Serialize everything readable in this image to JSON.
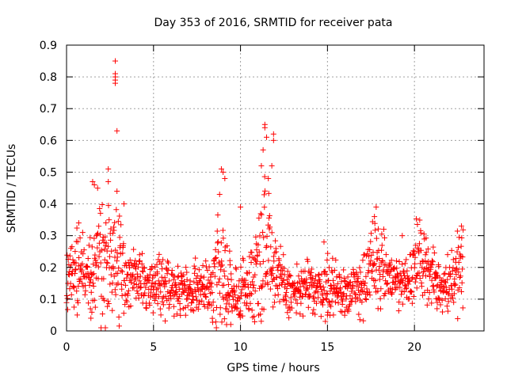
{
  "chart_data": {
    "type": "scatter",
    "title": "Day 353 of 2016, SRMTID for receiver pata",
    "xlabel": "GPS time / hours",
    "ylabel": "SRMTID / TECUs",
    "xlim": [
      0,
      24
    ],
    "ylim": [
      0,
      0.9
    ],
    "xticks": [
      0,
      5,
      10,
      15,
      20
    ],
    "yticks": [
      0,
      0.1,
      0.2,
      0.3,
      0.4,
      0.5,
      0.6,
      0.7,
      0.8,
      0.9
    ],
    "xtick_labels": [
      "0",
      "5",
      "10",
      "15",
      "20"
    ],
    "ytick_labels": [
      "0",
      "0.1",
      "0.2",
      "0.3",
      "0.4",
      "0.5",
      "0.6",
      "0.7",
      "0.8",
      "0.9"
    ],
    "grid": true,
    "marker": "+",
    "color": "#ff0000",
    "series": [
      {
        "name": "SRMTID",
        "profile_x": [
          0.0,
          0.3,
          0.6,
          0.9,
          1.2,
          1.5,
          1.8,
          2.1,
          2.4,
          2.7,
          3.0,
          3.3,
          3.6,
          3.9,
          4.2,
          4.5,
          4.8,
          5.1,
          5.4,
          5.7,
          6.0,
          6.3,
          6.6,
          6.9,
          7.2,
          7.5,
          7.8,
          8.1,
          8.4,
          8.7,
          9.0,
          9.3,
          9.6,
          9.9,
          10.2,
          10.5,
          10.8,
          11.1,
          11.4,
          11.7,
          12.0,
          12.3,
          12.6,
          12.9,
          13.2,
          13.5,
          13.8,
          14.1,
          14.4,
          14.7,
          15.0,
          15.3,
          15.6,
          15.9,
          16.2,
          16.5,
          16.8,
          17.1,
          17.4,
          17.7,
          18.0,
          18.3,
          18.6,
          18.9,
          19.2,
          19.5,
          19.8,
          20.1,
          20.4,
          20.7,
          21.0,
          21.3,
          21.6,
          21.9,
          22.2,
          22.5,
          22.8
        ],
        "profile_median": [
          0.15,
          0.17,
          0.19,
          0.2,
          0.18,
          0.2,
          0.22,
          0.23,
          0.24,
          0.22,
          0.2,
          0.19,
          0.17,
          0.16,
          0.16,
          0.15,
          0.14,
          0.14,
          0.15,
          0.16,
          0.15,
          0.14,
          0.13,
          0.13,
          0.12,
          0.13,
          0.14,
          0.13,
          0.15,
          0.2,
          0.18,
          0.13,
          0.1,
          0.11,
          0.14,
          0.13,
          0.17,
          0.24,
          0.3,
          0.27,
          0.2,
          0.15,
          0.13,
          0.12,
          0.12,
          0.13,
          0.14,
          0.13,
          0.13,
          0.14,
          0.15,
          0.13,
          0.12,
          0.12,
          0.13,
          0.12,
          0.14,
          0.15,
          0.18,
          0.22,
          0.2,
          0.18,
          0.17,
          0.16,
          0.15,
          0.16,
          0.18,
          0.22,
          0.23,
          0.2,
          0.17,
          0.15,
          0.14,
          0.15,
          0.17,
          0.19,
          0.2
        ],
        "profile_spread": [
          0.06,
          0.05,
          0.06,
          0.06,
          0.05,
          0.07,
          0.09,
          0.12,
          0.1,
          0.09,
          0.08,
          0.06,
          0.05,
          0.05,
          0.04,
          0.04,
          0.04,
          0.04,
          0.05,
          0.05,
          0.04,
          0.04,
          0.04,
          0.04,
          0.04,
          0.04,
          0.04,
          0.04,
          0.05,
          0.1,
          0.09,
          0.05,
          0.04,
          0.04,
          0.05,
          0.05,
          0.07,
          0.1,
          0.12,
          0.1,
          0.06,
          0.05,
          0.04,
          0.04,
          0.04,
          0.04,
          0.04,
          0.04,
          0.04,
          0.04,
          0.05,
          0.04,
          0.04,
          0.04,
          0.04,
          0.04,
          0.05,
          0.05,
          0.06,
          0.08,
          0.06,
          0.05,
          0.05,
          0.05,
          0.04,
          0.04,
          0.05,
          0.06,
          0.05,
          0.05,
          0.04,
          0.04,
          0.04,
          0.05,
          0.05,
          0.06,
          0.06
        ],
        "peaks": [
          {
            "x": 2.8,
            "y": 0.85
          },
          {
            "x": 2.8,
            "y": 0.81
          },
          {
            "x": 2.8,
            "y": 0.8
          },
          {
            "x": 2.8,
            "y": 0.79
          },
          {
            "x": 2.8,
            "y": 0.78
          },
          {
            "x": 2.9,
            "y": 0.63
          },
          {
            "x": 2.4,
            "y": 0.51
          },
          {
            "x": 2.4,
            "y": 0.47
          },
          {
            "x": 1.5,
            "y": 0.47
          },
          {
            "x": 1.6,
            "y": 0.46
          },
          {
            "x": 2.9,
            "y": 0.44
          },
          {
            "x": 3.3,
            "y": 0.4
          },
          {
            "x": 0.7,
            "y": 0.34
          },
          {
            "x": 8.9,
            "y": 0.51
          },
          {
            "x": 9.0,
            "y": 0.5
          },
          {
            "x": 9.1,
            "y": 0.48
          },
          {
            "x": 8.8,
            "y": 0.43
          },
          {
            "x": 9.2,
            "y": 0.02
          },
          {
            "x": 10.0,
            "y": 0.39
          },
          {
            "x": 11.4,
            "y": 0.65
          },
          {
            "x": 11.4,
            "y": 0.64
          },
          {
            "x": 11.5,
            "y": 0.61
          },
          {
            "x": 11.3,
            "y": 0.57
          },
          {
            "x": 11.9,
            "y": 0.62
          },
          {
            "x": 11.9,
            "y": 0.6
          },
          {
            "x": 11.8,
            "y": 0.52
          },
          {
            "x": 11.2,
            "y": 0.52
          },
          {
            "x": 11.6,
            "y": 0.48
          },
          {
            "x": 1.4,
            "y": 0.04
          },
          {
            "x": 14.8,
            "y": 0.28
          },
          {
            "x": 17.8,
            "y": 0.39
          },
          {
            "x": 17.7,
            "y": 0.36
          },
          {
            "x": 19.3,
            "y": 0.3
          },
          {
            "x": 22.7,
            "y": 0.33
          },
          {
            "x": 21.3,
            "y": 0.07
          },
          {
            "x": 9.3,
            "y": 0.06
          },
          {
            "x": 15.0,
            "y": 0.05
          }
        ],
        "x_end": 22.8,
        "approx_point_count": 1380
      }
    ]
  }
}
